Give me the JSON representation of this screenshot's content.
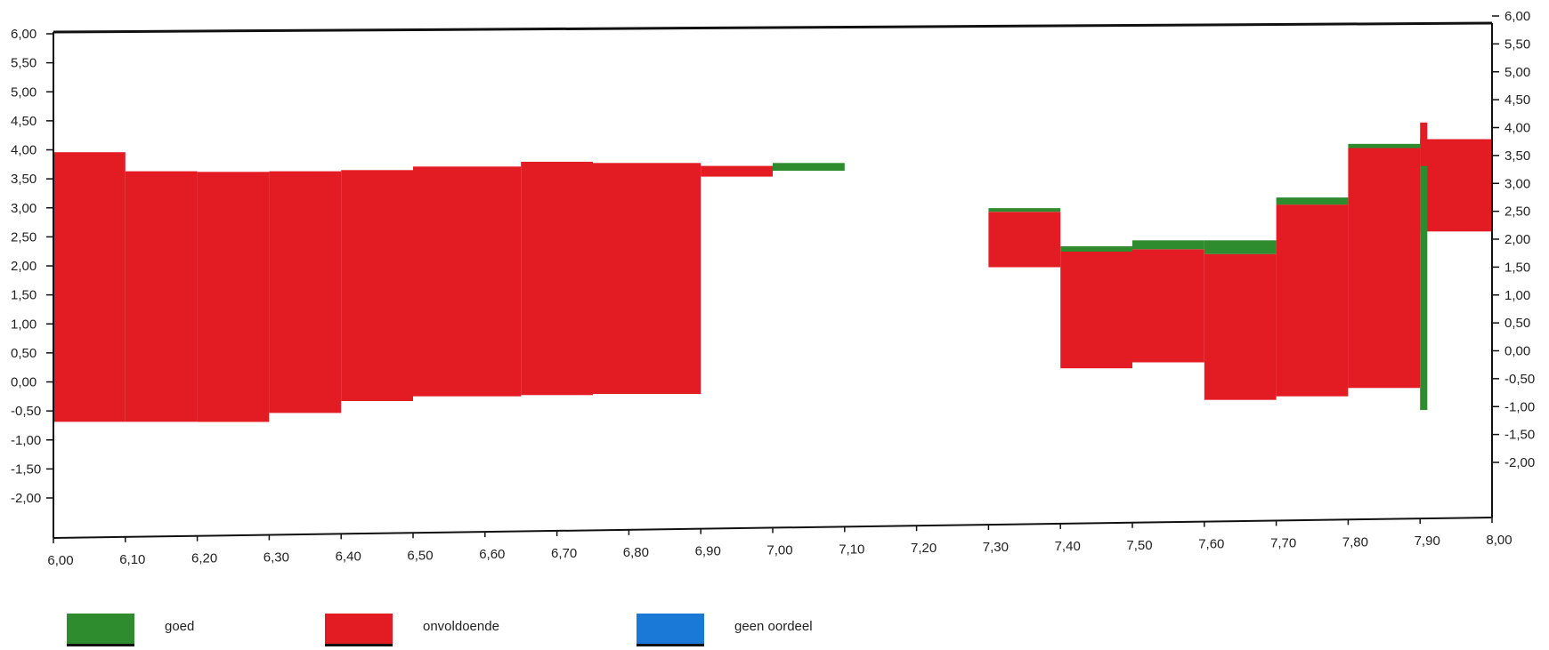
{
  "chart_data": {
    "type": "bar",
    "x_ticks": [
      "6,00",
      "6,10",
      "6,20",
      "6,30",
      "6,40",
      "6,50",
      "6,60",
      "6,70",
      "6,80",
      "6,90",
      "7,00",
      "7,10",
      "7,20",
      "7,30",
      "7,40",
      "7,50",
      "7,60",
      "7,70",
      "7,80",
      "7,90",
      "8,00"
    ],
    "y_left_ticks": [
      "6,00",
      "5,50",
      "5,00",
      "4,50",
      "4,00",
      "3,50",
      "3,00",
      "2,50",
      "2,00",
      "1,50",
      "1,00",
      "0,50",
      "0,00",
      "-0,50",
      "-1,00",
      "-1,50",
      "-2,00"
    ],
    "y_right_ticks": [
      "6,00",
      "5,50",
      "5,00",
      "4,50",
      "4,00",
      "3,50",
      "3,00",
      "2,50",
      "2,00",
      "1,50",
      "1,00",
      "0,50",
      "0,00",
      "-0,50",
      "-1,00",
      "-1,50",
      "-2,00"
    ],
    "xlim": [
      6.0,
      8.0
    ],
    "ylim": [
      -2.5,
      6.0
    ],
    "grid": false,
    "legend_position": "bottom",
    "colors": {
      "goed": "#2e8b2e",
      "onvoldoende": "#e31b23",
      "geen_oordeel": "#1a78d6"
    },
    "legend": [
      {
        "key": "goed",
        "label": "goed",
        "color": "#2e8b2e"
      },
      {
        "key": "onvoldoende",
        "label": "onvoldoende",
        "color": "#e31b23"
      },
      {
        "key": "geen_oordeel",
        "label": "geen oordeel",
        "color": "#1a78d6"
      }
    ],
    "bars": [
      {
        "x0": 6.0,
        "x1": 6.1,
        "bottom": -0.55,
        "top": 3.98,
        "category": "onvoldoende"
      },
      {
        "x0": 6.1,
        "x1": 6.2,
        "bottom": -0.55,
        "top": 3.66,
        "category": "onvoldoende"
      },
      {
        "x0": 6.2,
        "x1": 6.3,
        "bottom": -0.55,
        "top": 3.65,
        "category": "onvoldoende"
      },
      {
        "x0": 6.3,
        "x1": 6.4,
        "bottom": -0.4,
        "top": 3.66,
        "category": "onvoldoende"
      },
      {
        "x0": 6.4,
        "x1": 6.5,
        "bottom": -0.2,
        "top": 3.68,
        "category": "onvoldoende"
      },
      {
        "x0": 6.5,
        "x1": 6.65,
        "bottom": -0.12,
        "top": 3.74,
        "category": "onvoldoende"
      },
      {
        "x0": 6.65,
        "x1": 6.75,
        "bottom": -0.1,
        "top": 3.82,
        "category": "onvoldoende"
      },
      {
        "x0": 6.75,
        "x1": 6.9,
        "bottom": -0.08,
        "top": 3.8,
        "category": "onvoldoende"
      },
      {
        "x0": 6.9,
        "x1": 7.0,
        "bottom": 3.57,
        "top": 3.75,
        "category": "onvoldoende"
      },
      {
        "x0": 7.0,
        "x1": 7.1,
        "bottom": 3.67,
        "top": 3.8,
        "category": "goed"
      },
      {
        "x0": 7.3,
        "x1": 7.4,
        "bottom": 2.05,
        "top": 2.98,
        "category": "onvoldoende"
      },
      {
        "x0": 7.3,
        "x1": 7.4,
        "bottom": 2.98,
        "top": 3.04,
        "category": "goed"
      },
      {
        "x0": 7.4,
        "x1": 7.5,
        "bottom": 0.35,
        "top": 2.31,
        "category": "onvoldoende"
      },
      {
        "x0": 7.4,
        "x1": 7.5,
        "bottom": 2.31,
        "top": 2.4,
        "category": "goed"
      },
      {
        "x0": 7.5,
        "x1": 7.6,
        "bottom": 0.45,
        "top": 2.35,
        "category": "onvoldoende"
      },
      {
        "x0": 7.5,
        "x1": 7.6,
        "bottom": 2.35,
        "top": 2.5,
        "category": "goed"
      },
      {
        "x0": 7.6,
        "x1": 7.7,
        "bottom": -0.18,
        "top": 2.27,
        "category": "onvoldoende"
      },
      {
        "x0": 7.6,
        "x1": 7.7,
        "bottom": 2.27,
        "top": 2.5,
        "category": "goed"
      },
      {
        "x0": 7.7,
        "x1": 7.8,
        "bottom": -0.12,
        "top": 3.1,
        "category": "onvoldoende"
      },
      {
        "x0": 7.7,
        "x1": 7.8,
        "bottom": 3.1,
        "top": 3.22,
        "category": "goed"
      },
      {
        "x0": 7.8,
        "x1": 7.9,
        "bottom": 0.02,
        "top": 4.05,
        "category": "onvoldoende"
      },
      {
        "x0": 7.8,
        "x1": 7.9,
        "bottom": 4.05,
        "top": 4.12,
        "category": "goed"
      },
      {
        "x0": 7.9,
        "x1": 8.0,
        "bottom": 2.65,
        "top": 4.2,
        "category": "onvoldoende"
      },
      {
        "x0": 7.9,
        "x1": 7.91,
        "bottom": -0.35,
        "top": 3.75,
        "category": "goed"
      },
      {
        "x0": 7.9,
        "x1": 7.91,
        "bottom": 3.75,
        "top": 4.48,
        "category": "onvoldoende"
      }
    ]
  }
}
